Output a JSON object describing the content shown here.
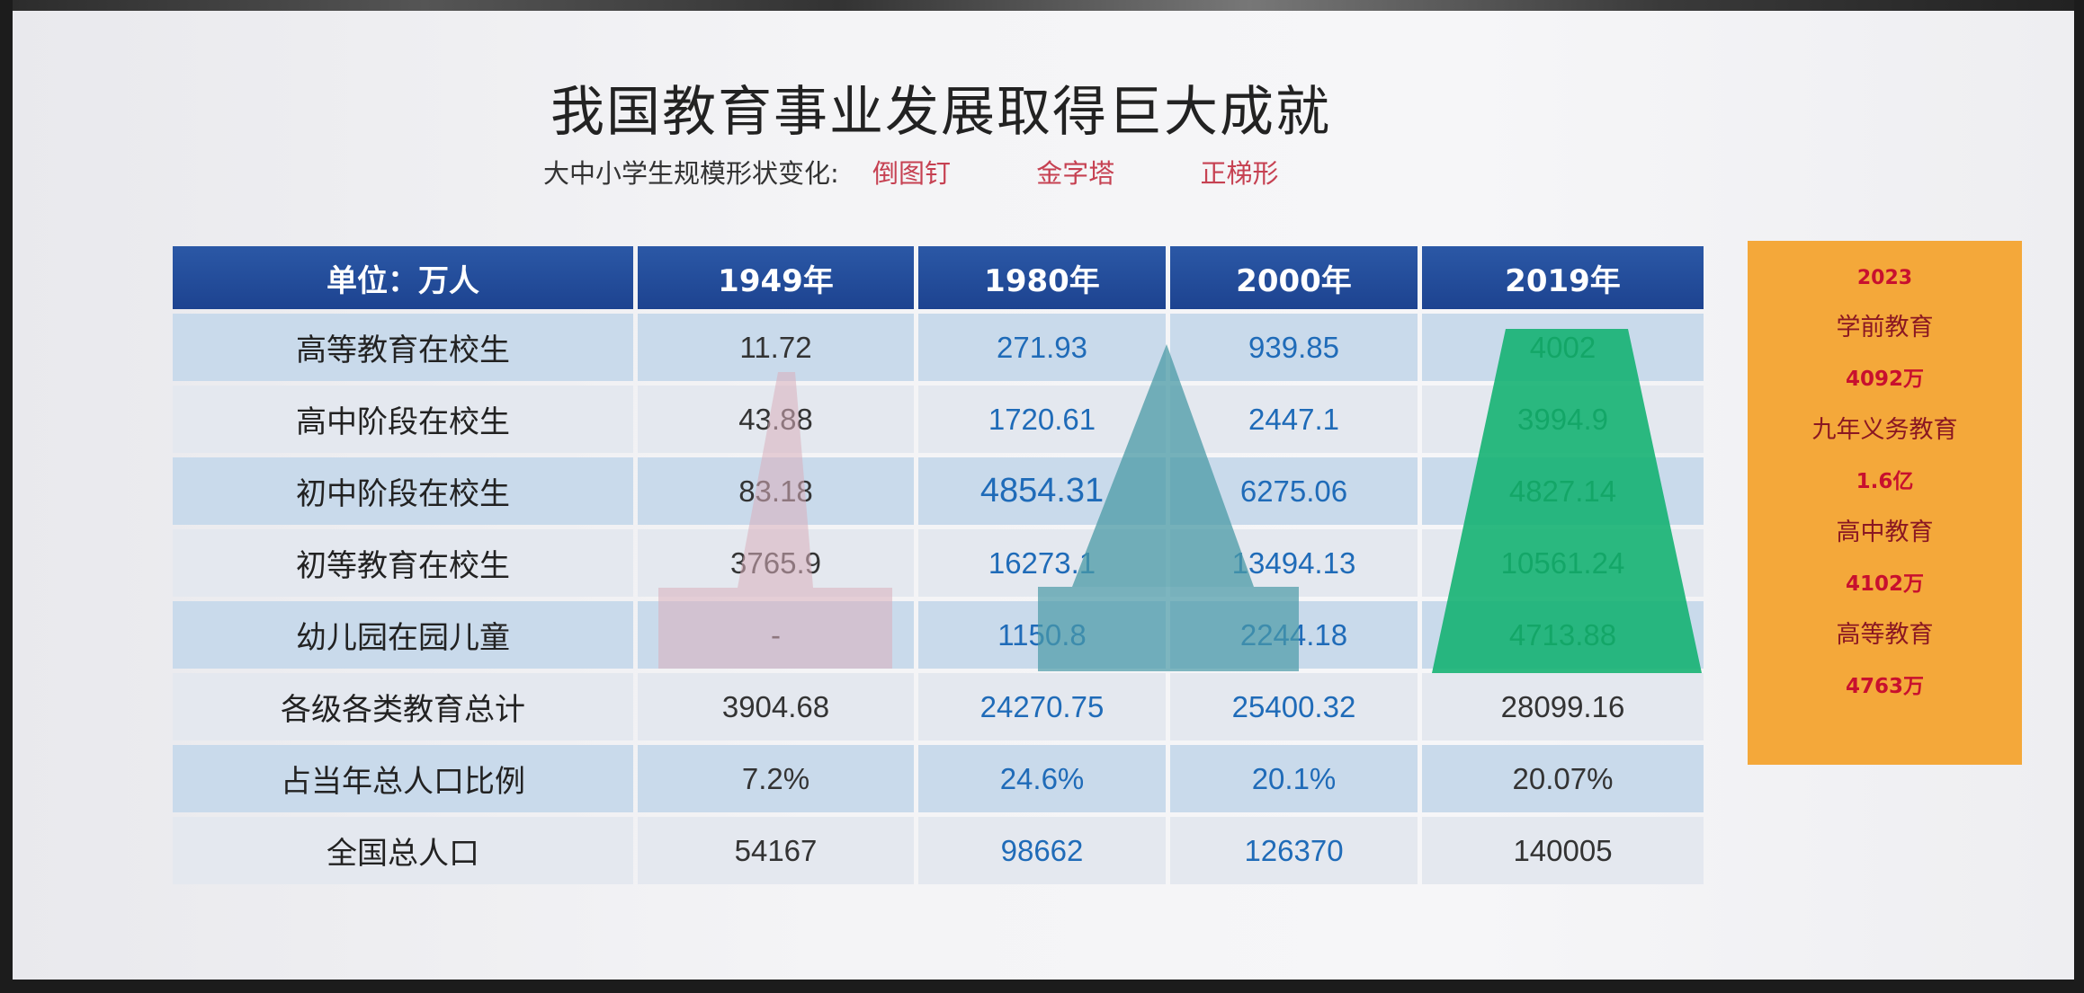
{
  "title": "我国教育事业发展取得巨大成就",
  "subtitle": {
    "label": "大中小学生规模形状变化:",
    "shapes": [
      "倒图钉",
      "金字塔",
      "正梯形"
    ]
  },
  "table": {
    "headers": [
      "单位：万人",
      "1949年",
      "1980年",
      "2000年",
      "2019年"
    ],
    "rows": [
      {
        "label": "高等教育在校生",
        "values": [
          "11.72",
          "271.93",
          "939.85",
          "4002"
        ]
      },
      {
        "label": "高中阶段在校生",
        "values": [
          "43.88",
          "1720.61",
          "2447.1",
          "3994.9"
        ]
      },
      {
        "label": "初中阶段在校生",
        "values": [
          "83.18",
          "4854.31",
          "6275.06",
          "4827.14"
        ]
      },
      {
        "label": "初等教育在校生",
        "values": [
          "3765.9",
          "16273.1",
          "13494.13",
          "10561.24"
        ]
      },
      {
        "label": "幼儿园在园儿童",
        "values": [
          "-",
          "1150.8",
          "2244.18",
          "4713.88"
        ]
      },
      {
        "label": "各级各类教育总计",
        "values": [
          "3904.68",
          "24270.75",
          "25400.32",
          "28099.16"
        ]
      },
      {
        "label": "占当年总人口比例",
        "values": [
          "7.2%",
          "24.6%",
          "20.1%",
          "20.07%"
        ]
      },
      {
        "label": "全国总人口",
        "values": [
          "54167",
          "98662",
          "126370",
          "140005"
        ]
      }
    ]
  },
  "sidebar": {
    "year": "2023",
    "items": [
      {
        "category": "学前教育",
        "value": "4092万"
      },
      {
        "category": "九年义务教育",
        "value": "1.6亿"
      },
      {
        "category": "高中教育",
        "value": "4102万"
      },
      {
        "category": "高等教育",
        "value": "4763万"
      }
    ]
  },
  "colors": {
    "header_blue": "#1d4390",
    "row_blue": "#c9daeb",
    "row_gray": "#e4e8ef",
    "shape_1949": "#d9aebc",
    "shape_1980": "#4a9aa6",
    "shape_2019": "#10b070",
    "sidebar_orange": "#f4a83a",
    "sidebar_red": "#c8102e"
  }
}
